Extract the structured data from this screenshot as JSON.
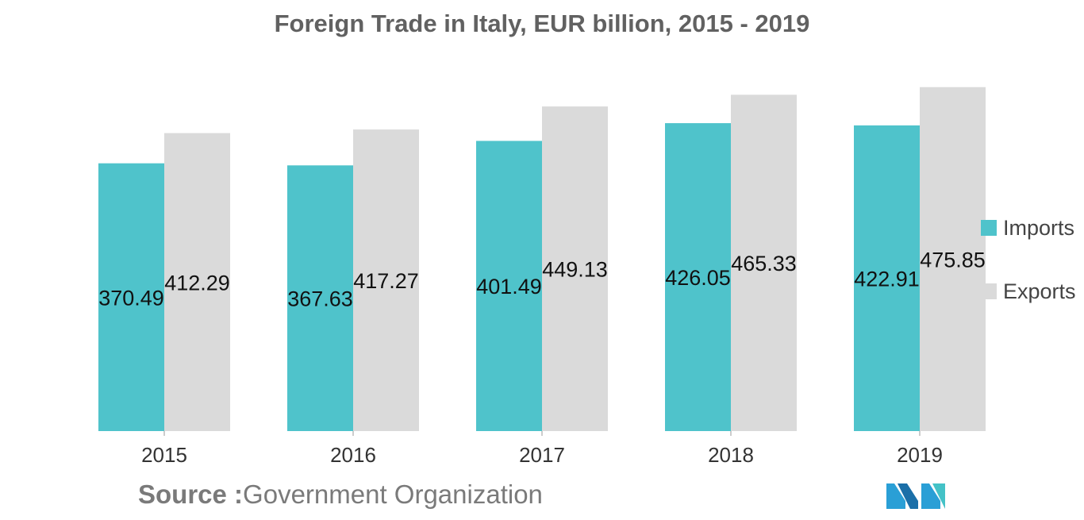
{
  "chart_data": {
    "type": "bar",
    "title": "Foreign Trade in Italy, EUR billion, 2015 - 2019",
    "categories": [
      "2015",
      "2016",
      "2017",
      "2018",
      "2019"
    ],
    "series": [
      {
        "name": "Imports",
        "color": "#4fc3cb",
        "values": [
          370.49,
          367.63,
          401.49,
          426.05,
          422.91
        ],
        "labels": [
          "370.49",
          "367.63",
          "401.49",
          "426.05",
          "422.91"
        ]
      },
      {
        "name": "Exports",
        "color": "#dadada",
        "values": [
          412.29,
          417.27,
          449.13,
          465.33,
          475.85
        ],
        "labels": [
          "412.29",
          "417.27",
          "449.13",
          "465.33",
          "475.85"
        ]
      }
    ],
    "xlabel": "",
    "ylabel": "",
    "ylim": [
      0,
      480
    ],
    "grid": false,
    "legend": "right"
  },
  "source": {
    "label": "Source :",
    "text": "Government Organization"
  },
  "logo": {
    "icon": "mordor-logo-icon",
    "colors": [
      "#2a9fd6",
      "#1b6fa8",
      "#44c2c7"
    ]
  }
}
